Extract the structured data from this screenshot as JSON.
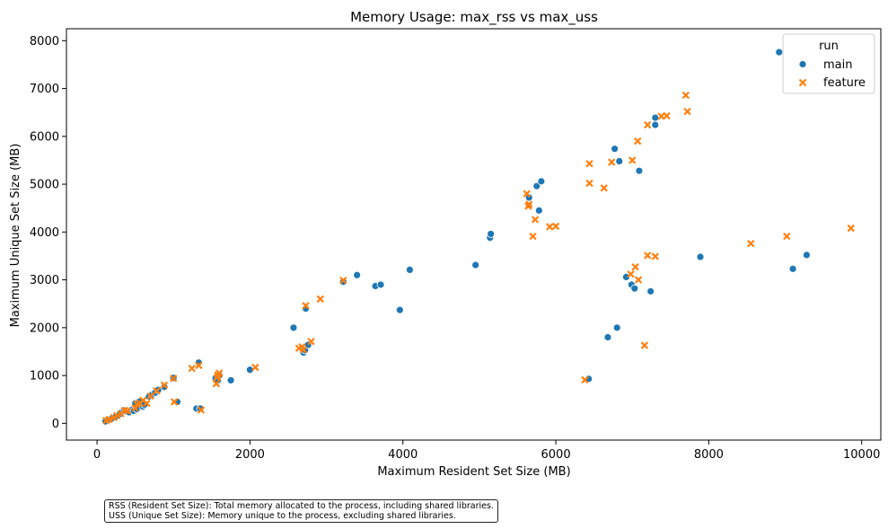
{
  "chart_data": {
    "type": "scatter",
    "title": "Memory Usage: max_rss vs max_uss",
    "xlabel": "Maximum Resident Set Size (MB)",
    "ylabel": "Maximum Unique Set Size (MB)",
    "xlim": [
      -400,
      10250
    ],
    "ylim": [
      -350,
      8250
    ],
    "xticks": [
      0,
      2000,
      4000,
      6000,
      8000,
      10000
    ],
    "yticks": [
      0,
      1000,
      2000,
      3000,
      4000,
      5000,
      6000,
      7000,
      8000
    ],
    "legend": {
      "title": "run",
      "position": "top-right"
    },
    "series": [
      {
        "name": "main",
        "marker": "circle",
        "color": "#1f77b4",
        "points": [
          [
            110,
            40
          ],
          [
            150,
            80
          ],
          [
            200,
            110
          ],
          [
            250,
            150
          ],
          [
            300,
            200
          ],
          [
            330,
            240
          ],
          [
            360,
            270
          ],
          [
            380,
            250
          ],
          [
            420,
            230
          ],
          [
            450,
            280
          ],
          [
            480,
            260
          ],
          [
            500,
            420
          ],
          [
            520,
            300
          ],
          [
            550,
            450
          ],
          [
            600,
            350
          ],
          [
            620,
            390
          ],
          [
            680,
            560
          ],
          [
            720,
            600
          ],
          [
            760,
            640
          ],
          [
            800,
            700
          ],
          [
            880,
            760
          ],
          [
            1000,
            950
          ],
          [
            1050,
            450
          ],
          [
            1300,
            310
          ],
          [
            1330,
            1270
          ],
          [
            1350,
            310
          ],
          [
            1550,
            940
          ],
          [
            1580,
            900
          ],
          [
            1600,
            1000
          ],
          [
            1750,
            900
          ],
          [
            2000,
            1120
          ],
          [
            2570,
            2000
          ],
          [
            2700,
            1480
          ],
          [
            2720,
            1530
          ],
          [
            2730,
            2400
          ],
          [
            2760,
            1640
          ],
          [
            3220,
            2960
          ],
          [
            3400,
            3100
          ],
          [
            3640,
            2870
          ],
          [
            3710,
            2900
          ],
          [
            3960,
            2370
          ],
          [
            4090,
            3210
          ],
          [
            4950,
            3310
          ],
          [
            5140,
            3880
          ],
          [
            5150,
            3960
          ],
          [
            5650,
            4720
          ],
          [
            5750,
            4960
          ],
          [
            5780,
            4450
          ],
          [
            5810,
            5060
          ],
          [
            6430,
            930
          ],
          [
            6680,
            1800
          ],
          [
            6770,
            5740
          ],
          [
            6800,
            2000
          ],
          [
            6830,
            5480
          ],
          [
            6920,
            3060
          ],
          [
            6990,
            2900
          ],
          [
            7030,
            2820
          ],
          [
            7090,
            5280
          ],
          [
            7240,
            2760
          ],
          [
            7300,
            6390
          ],
          [
            7300,
            6240
          ],
          [
            7890,
            3480
          ],
          [
            8920,
            7760
          ],
          [
            9100,
            3230
          ],
          [
            9280,
            3520
          ]
        ]
      },
      {
        "name": "feature",
        "marker": "x",
        "color": "#ff7f0e",
        "points": [
          [
            120,
            60
          ],
          [
            160,
            80
          ],
          [
            220,
            120
          ],
          [
            260,
            160
          ],
          [
            310,
            200
          ],
          [
            360,
            270
          ],
          [
            400,
            260
          ],
          [
            500,
            320
          ],
          [
            520,
            400
          ],
          [
            560,
            420
          ],
          [
            600,
            480
          ],
          [
            650,
            420
          ],
          [
            700,
            570
          ],
          [
            780,
            680
          ],
          [
            880,
            800
          ],
          [
            1000,
            940
          ],
          [
            1010,
            450
          ],
          [
            1240,
            1150
          ],
          [
            1330,
            1210
          ],
          [
            1360,
            280
          ],
          [
            1560,
            830
          ],
          [
            1570,
            960
          ],
          [
            1580,
            1010
          ],
          [
            1600,
            1050
          ],
          [
            2070,
            1170
          ],
          [
            2640,
            1570
          ],
          [
            2680,
            1600
          ],
          [
            2700,
            1540
          ],
          [
            2730,
            2460
          ],
          [
            2800,
            1710
          ],
          [
            2920,
            2600
          ],
          [
            3220,
            2990
          ],
          [
            5620,
            4800
          ],
          [
            5640,
            4540
          ],
          [
            5650,
            4580
          ],
          [
            5700,
            3910
          ],
          [
            5730,
            4260
          ],
          [
            5920,
            4110
          ],
          [
            6000,
            4120
          ],
          [
            6380,
            910
          ],
          [
            6440,
            5430
          ],
          [
            6440,
            5020
          ],
          [
            6630,
            4920
          ],
          [
            6730,
            5460
          ],
          [
            6980,
            3120
          ],
          [
            7000,
            5500
          ],
          [
            7040,
            3270
          ],
          [
            7070,
            5900
          ],
          [
            7080,
            3000
          ],
          [
            7160,
            1630
          ],
          [
            7200,
            6240
          ],
          [
            7200,
            3510
          ],
          [
            7300,
            3490
          ],
          [
            7380,
            6420
          ],
          [
            7450,
            6430
          ],
          [
            7700,
            6860
          ],
          [
            7720,
            6520
          ],
          [
            8550,
            3760
          ],
          [
            9020,
            3910
          ],
          [
            9860,
            4080
          ]
        ]
      }
    ],
    "footnote": [
      "RSS (Resident Set Size): Total memory allocated to the process, including shared libraries.",
      "USS (Unique Set Size): Memory unique to the process, excluding shared libraries."
    ]
  }
}
